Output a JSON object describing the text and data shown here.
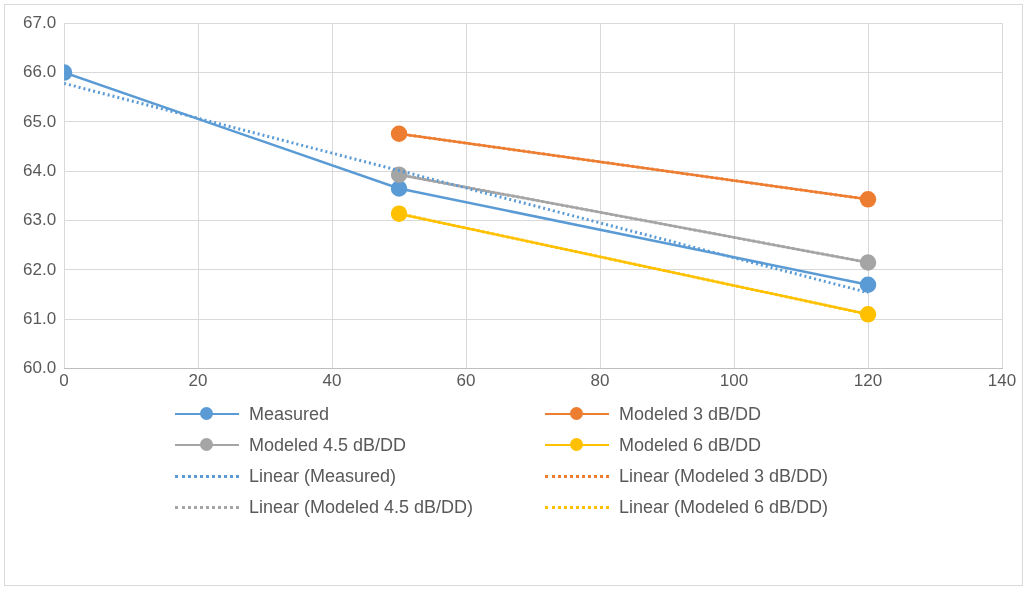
{
  "chart_data": {
    "type": "line",
    "x": [
      0,
      50,
      120
    ],
    "xlim": [
      0,
      140
    ],
    "xticks": [
      0,
      20,
      40,
      60,
      80,
      100,
      120,
      140
    ],
    "ylim": [
      60,
      67
    ],
    "yticks": [
      {
        "value": 60,
        "label": "60.0"
      },
      {
        "value": 61,
        "label": "61.0"
      },
      {
        "value": 62,
        "label": "62.0"
      },
      {
        "value": 63,
        "label": "63.0"
      },
      {
        "value": 64,
        "label": "64.0"
      },
      {
        "value": 65,
        "label": "65.0"
      },
      {
        "value": 66,
        "label": "66.0"
      },
      {
        "value": 67,
        "label": "67.0"
      }
    ],
    "grid": true,
    "legend": "bottom",
    "marker": "circle",
    "line_style": "solid",
    "series": [
      {
        "name": "Measured",
        "color": "#5b9bd5",
        "values": [
          66.0,
          63.65,
          61.7
        ]
      },
      {
        "name": "Modeled 3 dB/DD",
        "color": "#ed7d31",
        "values": [
          null,
          64.76,
          63.43
        ]
      },
      {
        "name": "Modeled 4.5 dB/DD",
        "color": "#a5a5a5",
        "values": [
          null,
          63.93,
          62.15
        ]
      },
      {
        "name": "Modeled 6 dB/DD",
        "color": "#ffc000",
        "values": [
          null,
          63.14,
          61.1
        ]
      },
      {
        "name": "Linear (Measured)",
        "color": "#5b9bd5",
        "type": "line",
        "x": [
          0,
          120
        ],
        "values": [
          65.78,
          61.54
        ],
        "marker": "none",
        "line_style": "dotted"
      },
      {
        "name": "Linear (Modeled 3 dB/DD)",
        "color": "#ed7d31",
        "type": "line",
        "x": [
          50,
          120
        ],
        "values": [
          64.76,
          63.43
        ],
        "marker": "none",
        "line_style": "dotted"
      },
      {
        "name": "Linear (Modeled 4.5 dB/DD)",
        "color": "#a5a5a5",
        "type": "line",
        "x": [
          50,
          120
        ],
        "values": [
          63.93,
          62.15
        ],
        "marker": "none",
        "line_style": "dotted"
      },
      {
        "name": "Linear (Modeled 6 dB/DD)",
        "color": "#ffc000",
        "type": "line",
        "x": [
          50,
          120
        ],
        "values": [
          63.14,
          61.1
        ],
        "marker": "none",
        "line_style": "dotted"
      }
    ]
  }
}
